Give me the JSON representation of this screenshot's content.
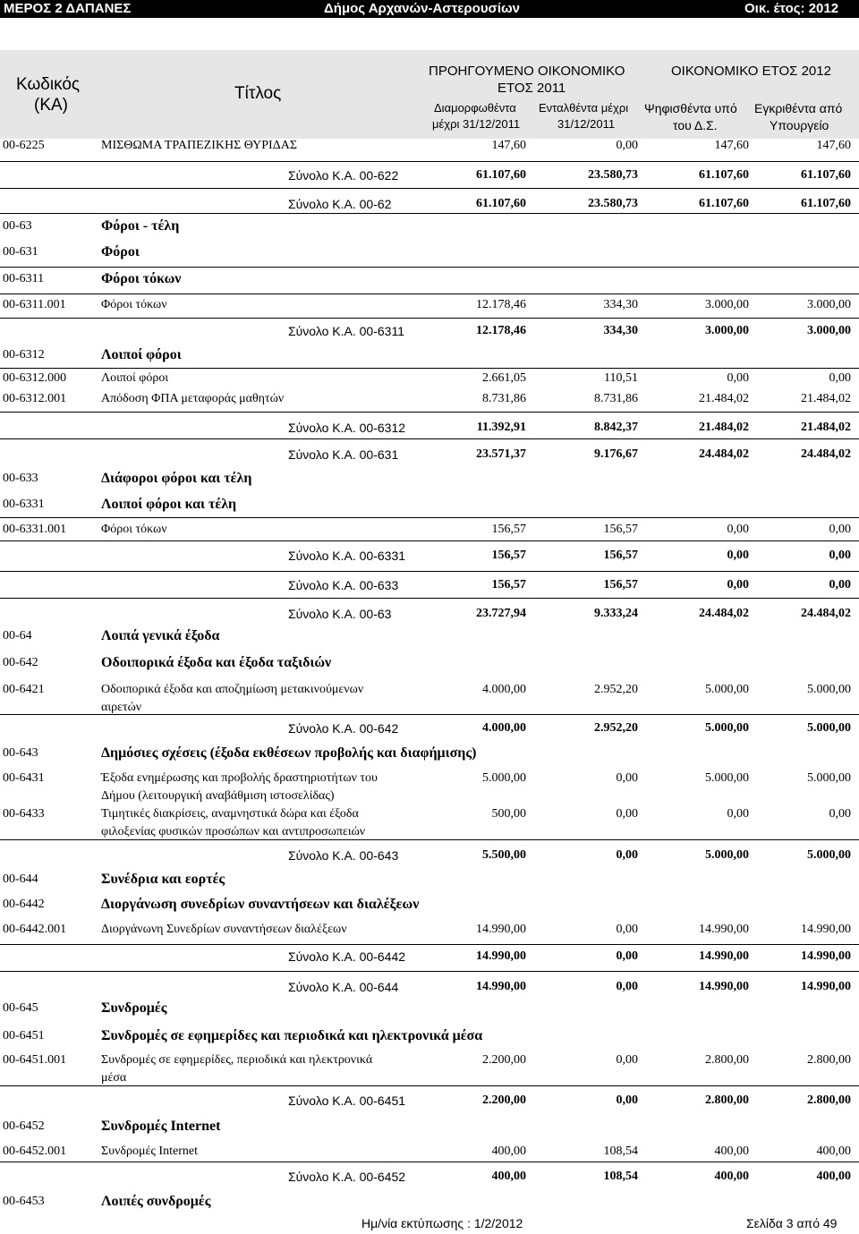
{
  "topbar": {
    "left": "ΜΕΡΟΣ 2 ΔΑΠΑΝΕΣ",
    "center": "Δήμος Αρχανών-Αστερουσίων",
    "right": "Οικ. έτος: 2012"
  },
  "header": {
    "code1": "Κωδικός",
    "code2": "(ΚΑ)",
    "title": "Τίτλος",
    "prev_year1": "ΠΡΟΗΓΟΥΜΕΝΟ ΟΙΚΟΝΟΜΙΚΟ",
    "prev_year2": "ΕΤΟΣ 2011",
    "cur_year": "ΟΙΚΟΝΟΜΙΚΟ ΕΤΟΣ 2012",
    "col1a": "Διαμορφωθέντα",
    "col1b": "μέχρι 31/12/2011",
    "col2a": "Ενταλθέντα μέχρι",
    "col2b": "31/12/2011",
    "col3a": "Ψηφισθέντα υπό",
    "col3b": "του Δ.Σ.",
    "col4a": "Εγκριθέντα από",
    "col4b": "Υπουργείο"
  },
  "rows": [
    {
      "code": "00-6225",
      "title": "ΜΙΣΘΩΜΑ ΤΡΑΠΕΖΙΚΗΣ ΘΥΡΙΔΑΣ",
      "v1": "147,60",
      "v2": "0,00",
      "v3": "147,60",
      "v4": "147,60"
    },
    {
      "sum": "Σύνολο Κ.Α.  00-622",
      "v1": "61.107,60",
      "v2": "23.580,73",
      "v3": "61.107,60",
      "v4": "61.107,60"
    },
    {
      "sum": "Σύνολο Κ.Α.  00-62",
      "v1": "61.107,60",
      "v2": "23.580,73",
      "v3": "61.107,60",
      "v4": "61.107,60"
    },
    {
      "code": "00-63",
      "title": "Φόροι - τέλη"
    },
    {
      "code": "00-631",
      "title": "Φόροι"
    },
    {
      "code": "00-6311",
      "title": "Φόροι τόκων"
    },
    {
      "code": "00-6311.001",
      "title": "Φόροι τόκων",
      "v1": "12.178,46",
      "v2": "334,30",
      "v3": "3.000,00",
      "v4": "3.000,00"
    },
    {
      "sum": "Σύνολο Κ.Α.  00-6311",
      "v1": "12.178,46",
      "v2": "334,30",
      "v3": "3.000,00",
      "v4": "3.000,00"
    },
    {
      "code": "00-6312",
      "title": "Λοιποί φόροι"
    },
    {
      "code": "00-6312.000",
      "title": "Λοιποί φόροι",
      "v1": "2.661,05",
      "v2": "110,51",
      "v3": "0,00",
      "v4": "0,00"
    },
    {
      "code": "00-6312.001",
      "title": "Απόδοση ΦΠΑ μεταφοράς μαθητών",
      "v1": "8.731,86",
      "v2": "8.731,86",
      "v3": "21.484,02",
      "v4": "21.484,02"
    },
    {
      "sum": "Σύνολο Κ.Α.  00-6312",
      "v1": "11.392,91",
      "v2": "8.842,37",
      "v3": "21.484,02",
      "v4": "21.484,02"
    },
    {
      "sum": "Σύνολο Κ.Α.  00-631",
      "v1": "23.571,37",
      "v2": "9.176,67",
      "v3": "24.484,02",
      "v4": "24.484,02"
    },
    {
      "code": "00-633",
      "title": "Διάφοροι φόροι και τέλη"
    },
    {
      "code": "00-6331",
      "title": "Λοιποί φόροι και τέλη"
    },
    {
      "code": "00-6331.001",
      "title": "Φόροι τόκων",
      "v1": "156,57",
      "v2": "156,57",
      "v3": "0,00",
      "v4": "0,00"
    },
    {
      "sum": "Σύνολο Κ.Α.  00-6331",
      "v1": "156,57",
      "v2": "156,57",
      "v3": "0,00",
      "v4": "0,00"
    },
    {
      "sum": "Σύνολο Κ.Α.  00-633",
      "v1": "156,57",
      "v2": "156,57",
      "v3": "0,00",
      "v4": "0,00"
    },
    {
      "sum": "Σύνολο Κ.Α.  00-63",
      "v1": "23.727,94",
      "v2": "9.333,24",
      "v3": "24.484,02",
      "v4": "24.484,02"
    },
    {
      "code": "00-64",
      "title": "Λοιπά γενικά έξοδα"
    },
    {
      "code": "00-642",
      "title": "Οδοιπορικά έξοδα και έξοδα ταξιδιών"
    },
    {
      "code": "00-6421",
      "title": "Οδοιπορικά έξοδα και αποζημίωση μετακινούμενων",
      "title2": "αιρετών",
      "v1": "4.000,00",
      "v2": "2.952,20",
      "v3": "5.000,00",
      "v4": "5.000,00"
    },
    {
      "sum": "Σύνολο Κ.Α.  00-642",
      "v1": "4.000,00",
      "v2": "2.952,20",
      "v3": "5.000,00",
      "v4": "5.000,00"
    },
    {
      "code": "00-643",
      "title": "Δημόσιες σχέσεις (έξοδα εκθέσεων προβολής και διαφήμισης)"
    },
    {
      "code": "00-6431",
      "title": "Έξοδα ενημέρωσης και προβολής δραστηριοτήτων του",
      "title2": "Δήμου (λειτουργική αναβάθμιση ιστοσελίδας)",
      "v1": "5.000,00",
      "v2": "0,00",
      "v3": "5.000,00",
      "v4": "5.000,00"
    },
    {
      "code": "00-6433",
      "title": "Τιμητικές διακρίσεις, αναμνηστικά δώρα και έξοδα",
      "title2": "φιλοξενίας φυσικών προσώπων και αντιπροσωπειών",
      "v1": "500,00",
      "v2": "0,00",
      "v3": "0,00",
      "v4": "0,00"
    },
    {
      "sum": "Σύνολο Κ.Α.  00-643",
      "v1": "5.500,00",
      "v2": "0,00",
      "v3": "5.000,00",
      "v4": "5.000,00"
    },
    {
      "code": "00-644",
      "title": "Συνέδρια και εορτές"
    },
    {
      "code": "00-6442",
      "title": "Διοργάνωση συνεδρίων συναντήσεων και διαλέξεων"
    },
    {
      "code": "00-6442.001",
      "title": "Διοργάνωνη Συνεδρίων συναντήσεων διαλέξεων",
      "v1": "14.990,00",
      "v2": "0,00",
      "v3": "14.990,00",
      "v4": "14.990,00"
    },
    {
      "sum": "Σύνολο Κ.Α.  00-6442",
      "v1": "14.990,00",
      "v2": "0,00",
      "v3": "14.990,00",
      "v4": "14.990,00"
    },
    {
      "sum": "Σύνολο Κ.Α.  00-644",
      "v1": "14.990,00",
      "v2": "0,00",
      "v3": "14.990,00",
      "v4": "14.990,00"
    },
    {
      "code": "00-645",
      "title": "Συνδρομές"
    },
    {
      "code": "00-6451",
      "title": "Συνδρομές σε εφημερίδες και περιοδικά και ηλεκτρονικά μέσα"
    },
    {
      "code": "00-6451.001",
      "title": "Συνδρομές σε εφημερίδες, περιοδικά και ηλεκτρονικά",
      "title2": "μέσα",
      "v1": "2.200,00",
      "v2": "0,00",
      "v3": "2.800,00",
      "v4": "2.800,00"
    },
    {
      "sum": "Σύνολο Κ.Α.  00-6451",
      "v1": "2.200,00",
      "v2": "0,00",
      "v3": "2.800,00",
      "v4": "2.800,00"
    },
    {
      "code": "00-6452",
      "title": "Συνδρομές Internet"
    },
    {
      "code": "00-6452.001",
      "title": "Συνδρομές Internet",
      "v1": "400,00",
      "v2": "108,54",
      "v3": "400,00",
      "v4": "400,00"
    },
    {
      "sum": "Σύνολο Κ.Α.  00-6452",
      "v1": "400,00",
      "v2": "108,54",
      "v3": "400,00",
      "v4": "400,00"
    },
    {
      "code": "00-6453",
      "title": "Λοιπές συνδρομές"
    }
  ],
  "footer": {
    "print_date": "Ημ/νία εκτύπωσης : 1/2/2012",
    "page": "Σελίδα 3 από 49"
  }
}
